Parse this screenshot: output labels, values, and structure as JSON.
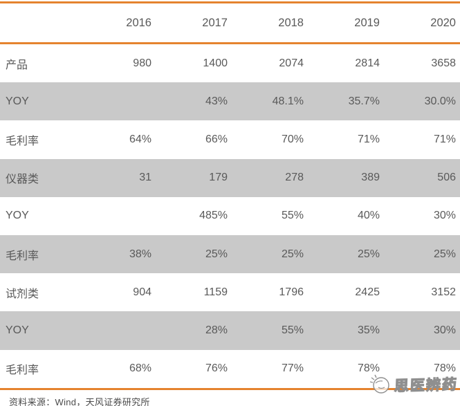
{
  "chart_data": {
    "type": "table",
    "columns": [
      "",
      "2016",
      "2017",
      "2018",
      "2019",
      "2020"
    ],
    "rows": [
      {
        "label": "产品",
        "values": [
          "980",
          "1400",
          "2074",
          "2814",
          "3658"
        ],
        "shaded": false
      },
      {
        "label": "YOY",
        "values": [
          "",
          "43%",
          "48.1%",
          "35.7%",
          "30.0%"
        ],
        "shaded": true
      },
      {
        "label": "毛利率",
        "values": [
          "64%",
          "66%",
          "70%",
          "71%",
          "71%"
        ],
        "shaded": false
      },
      {
        "label": "仪器类",
        "values": [
          "31",
          "179",
          "278",
          "389",
          "506"
        ],
        "shaded": true
      },
      {
        "label": "YOY",
        "values": [
          "",
          "485%",
          "55%",
          "40%",
          "30%"
        ],
        "shaded": false
      },
      {
        "label": "毛利率",
        "values": [
          "38%",
          "25%",
          "25%",
          "25%",
          "25%"
        ],
        "shaded": true
      },
      {
        "label": "试剂类",
        "values": [
          "904",
          "1159",
          "1796",
          "2425",
          "3152"
        ],
        "shaded": false
      },
      {
        "label": "YOY",
        "values": [
          "",
          "28%",
          "55%",
          "35%",
          "30%"
        ],
        "shaded": true
      },
      {
        "label": "毛利率",
        "values": [
          "68%",
          "76%",
          "77%",
          "78%",
          "78%"
        ],
        "shaded": false
      }
    ],
    "title": "",
    "legend": [],
    "grid": false
  },
  "source_note": "资料来源：Wind，天风证券研究所",
  "watermark": {
    "text": "思医辨药"
  },
  "colors": {
    "accent_orange": "#E5832E",
    "shaded_row": "#C9C9C9",
    "body_text": "#595959",
    "watermark_gray": "#8f8f8f"
  }
}
